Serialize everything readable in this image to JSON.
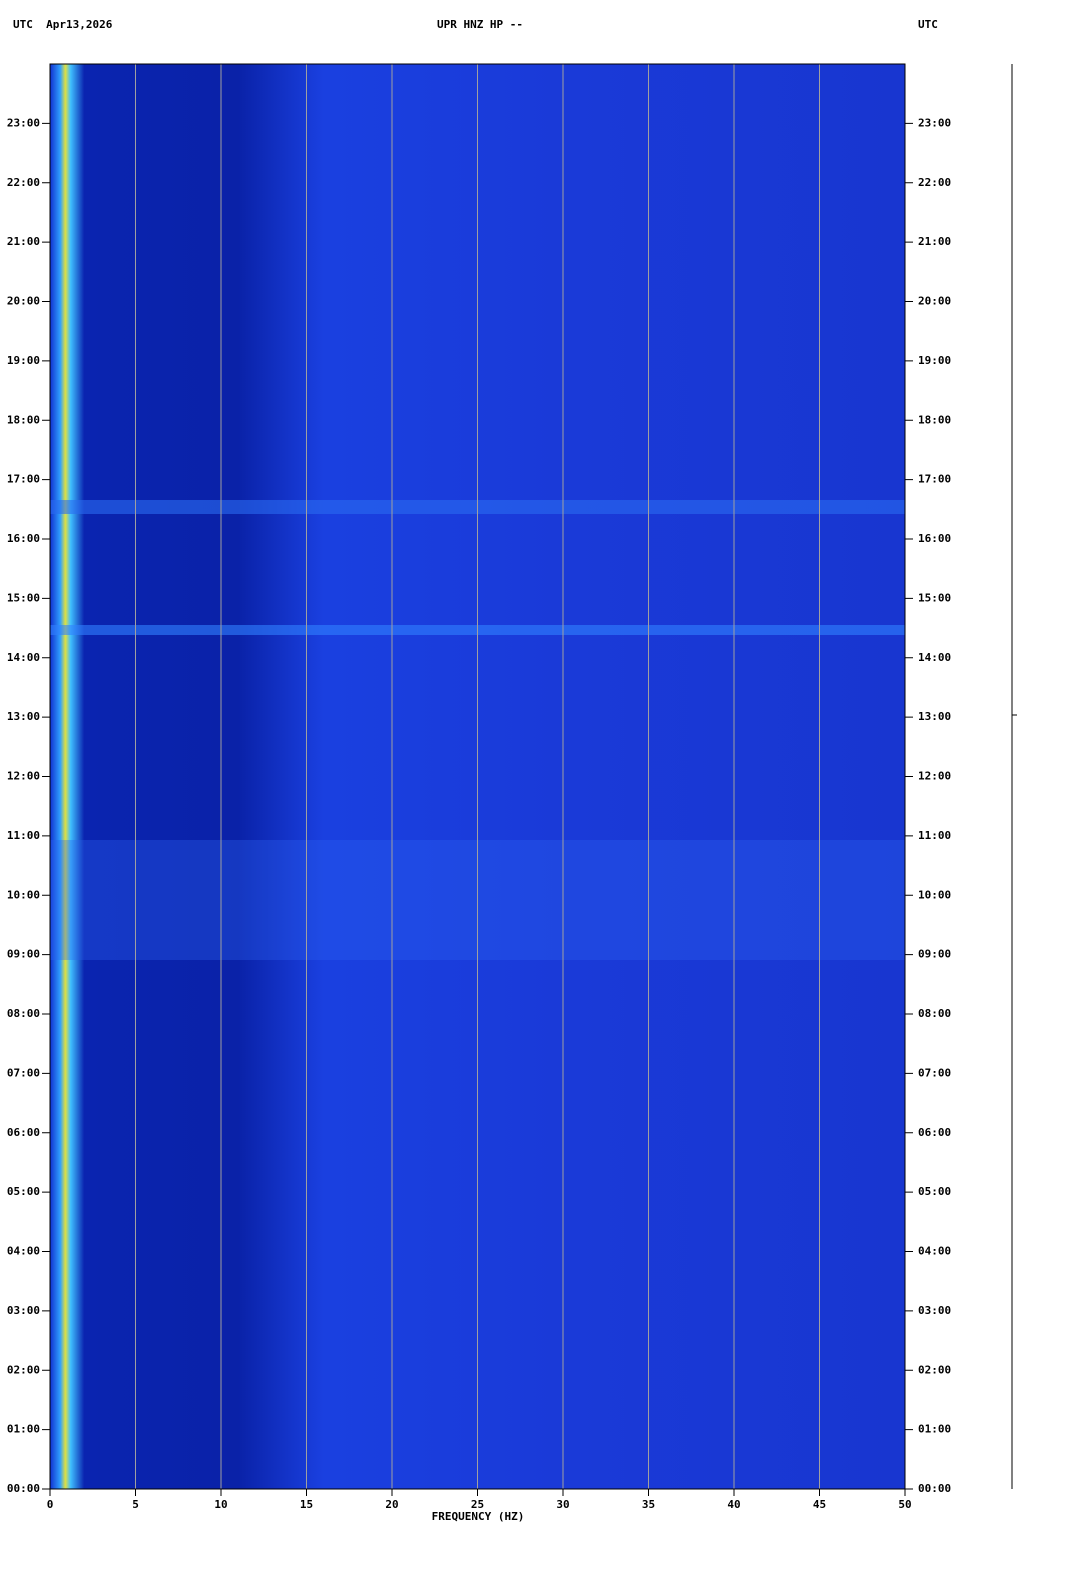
{
  "chart_data": {
    "type": "spectrogram",
    "title": "UPR HNZ HP --",
    "left_header": "UTC  Apr13,2026",
    "right_header": "UTC",
    "x_label": "FREQUENCY (HZ)",
    "xlim": [
      0,
      50
    ],
    "xticks": [
      0,
      5,
      10,
      15,
      20,
      25,
      30,
      35,
      40,
      45,
      50
    ],
    "ylim": [
      0,
      24
    ],
    "yticks": [
      {
        "value": 0,
        "label": "00:00"
      },
      {
        "value": 1,
        "label": "01:00"
      },
      {
        "value": 2,
        "label": "02:00"
      },
      {
        "value": 3,
        "label": "03:00"
      },
      {
        "value": 4,
        "label": "04:00"
      },
      {
        "value": 5,
        "label": "05:00"
      },
      {
        "value": 6,
        "label": "06:00"
      },
      {
        "value": 7,
        "label": "07:00"
      },
      {
        "value": 8,
        "label": "08:00"
      },
      {
        "value": 9,
        "label": "09:00"
      },
      {
        "value": 10,
        "label": "10:00"
      },
      {
        "value": 11,
        "label": "11:00"
      },
      {
        "value": 12,
        "label": "12:00"
      },
      {
        "value": 13,
        "label": "13:00"
      },
      {
        "value": 14,
        "label": "14:00"
      },
      {
        "value": 15,
        "label": "15:00"
      },
      {
        "value": 16,
        "label": "16:00"
      },
      {
        "value": 17,
        "label": "17:00"
      },
      {
        "value": 18,
        "label": "18:00"
      },
      {
        "value": 19,
        "label": "19:00"
      },
      {
        "value": 20,
        "label": "20:00"
      },
      {
        "value": 21,
        "label": "21:00"
      },
      {
        "value": 22,
        "label": "22:00"
      },
      {
        "value": 23,
        "label": "23:00"
      }
    ],
    "grid": true
  }
}
